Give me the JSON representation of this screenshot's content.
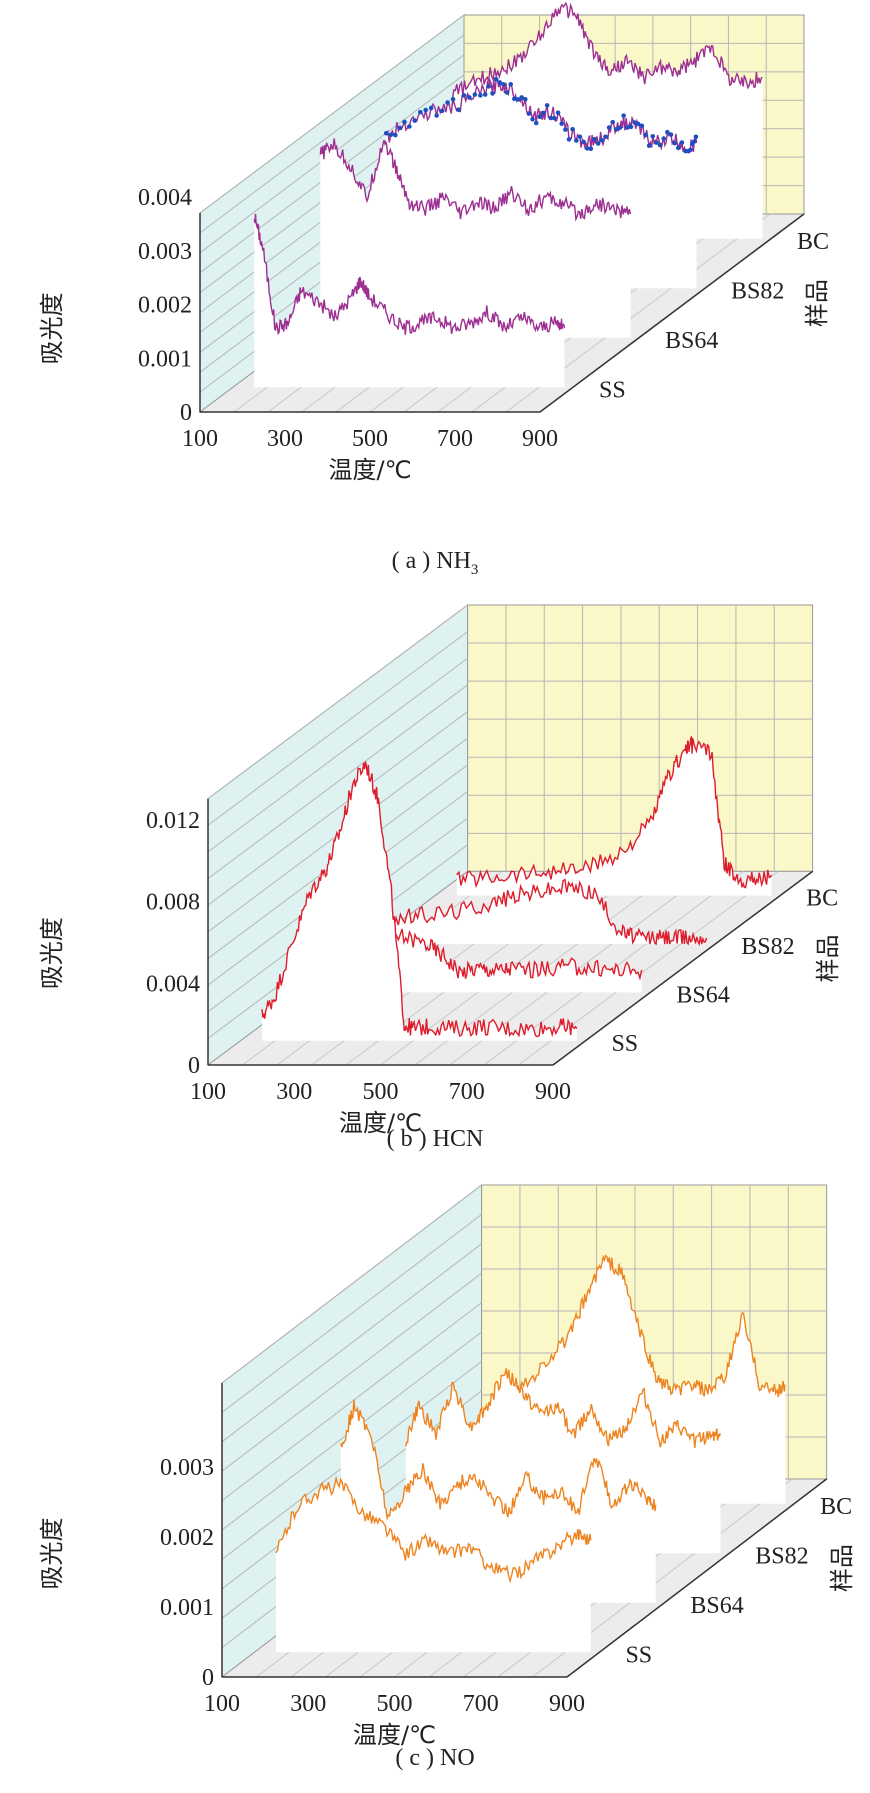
{
  "colors": {
    "left_wall": "#dff2f2",
    "back_wall": "#faf8c8",
    "floor": "#ececec",
    "grid": "#b5b5b5",
    "series_a": "#9c2f91",
    "series_a_marker": "#1f4fbf",
    "series_b": "#dd1c2c",
    "series_c": "#ee8420"
  },
  "chart_data": [
    {
      "type": "line",
      "projection": "3d-ribbons",
      "caption_prefix": "( a ) NH",
      "caption_sub": "3",
      "xlabel": "温度/℃",
      "ylabel": "吸光度",
      "zlabel": "样品",
      "xticks": [
        "100",
        "300",
        "500",
        "700",
        "900"
      ],
      "yticks": [
        "0",
        "0.001",
        "0.002",
        "0.003",
        "0.004"
      ],
      "xlim": [
        100,
        900
      ],
      "ylim": [
        0,
        0.004
      ],
      "categories": [
        "SS",
        "BS64",
        "BS82",
        "BC"
      ],
      "series": [
        {
          "name": "SS",
          "x": [
            150,
            170,
            200,
            230,
            260,
            300,
            340,
            380,
            400,
            420,
            460,
            500,
            540,
            580,
            620,
            660,
            700,
            740,
            780,
            820,
            860,
            880
          ],
          "y": [
            0.0032,
            0.0026,
            0.0011,
            0.0012,
            0.0018,
            0.0016,
            0.0013,
            0.0017,
            0.002,
            0.0017,
            0.0014,
            0.0011,
            0.0012,
            0.0013,
            0.0011,
            0.0012,
            0.0014,
            0.0011,
            0.0013,
            0.0011,
            0.0012,
            0.0011
          ]
        },
        {
          "name": "BS64",
          "x": [
            150,
            180,
            220,
            260,
            300,
            330,
            360,
            400,
            440,
            480,
            520,
            560,
            600,
            640,
            680,
            720,
            760,
            800,
            840,
            880
          ],
          "y": [
            0.0034,
            0.0036,
            0.0032,
            0.0026,
            0.0037,
            0.0031,
            0.0025,
            0.0024,
            0.0026,
            0.0023,
            0.0025,
            0.0024,
            0.0027,
            0.0024,
            0.0026,
            0.0025,
            0.0023,
            0.0025,
            0.0024,
            0.0023
          ]
        },
        {
          "name": "BS82",
          "x": [
            150,
            200,
            260,
            320,
            380,
            420,
            460,
            500,
            540,
            580,
            620,
            660,
            700,
            740,
            780,
            820,
            860,
            880
          ],
          "y": [
            0.0028,
            0.0031,
            0.0033,
            0.0034,
            0.0037,
            0.0038,
            0.0036,
            0.0032,
            0.0033,
            0.0029,
            0.0027,
            0.0028,
            0.0031,
            0.003,
            0.0027,
            0.0028,
            0.0026,
            0.0027
          ],
          "markers": true
        },
        {
          "name": "BC",
          "x": [
            150,
            200,
            250,
            300,
            350,
            400,
            440,
            480,
            520,
            560,
            600,
            640,
            680,
            720,
            760,
            800,
            840,
            880
          ],
          "y": [
            0.0027,
            0.0029,
            0.0031,
            0.0033,
            0.0037,
            0.0043,
            0.0042,
            0.0035,
            0.0031,
            0.0033,
            0.003,
            0.0032,
            0.0031,
            0.0033,
            0.0036,
            0.003,
            0.0029,
            0.003
          ]
        }
      ]
    },
    {
      "type": "line",
      "projection": "3d-ribbons",
      "caption_prefix": "( b ) HCN",
      "caption_sub": "",
      "xlabel": "温度/℃",
      "ylabel": "吸光度",
      "zlabel": "样品",
      "xticks": [
        "100",
        "300",
        "500",
        "700",
        "900"
      ],
      "yticks": [
        "0",
        "0.004",
        "0.008",
        "0.012"
      ],
      "xlim": [
        100,
        900
      ],
      "ylim": [
        0,
        0.012
      ],
      "categories": [
        "SS",
        "BS64",
        "BS82",
        "BC"
      ],
      "series": [
        {
          "name": "SS",
          "x": [
            150,
            180,
            220,
            260,
            300,
            330,
            360,
            390,
            420,
            450,
            480,
            500,
            540,
            600,
            660,
            720,
            780,
            840,
            880
          ],
          "y": [
            0.0012,
            0.0022,
            0.0048,
            0.0072,
            0.0085,
            0.0102,
            0.0125,
            0.0136,
            0.0118,
            0.0072,
            0.0008,
            0.0006,
            0.0007,
            0.0006,
            0.0007,
            0.0006,
            0.0006,
            0.0007,
            0.0006
          ]
        },
        {
          "name": "BS64",
          "x": [
            150,
            200,
            260,
            320,
            380,
            420,
            460,
            500,
            540,
            580,
            640,
            700,
            760,
            820,
            880
          ],
          "y": [
            0.0018,
            0.0024,
            0.0022,
            0.0028,
            0.0024,
            0.0018,
            0.001,
            0.0012,
            0.0011,
            0.0012,
            0.0011,
            0.0013,
            0.0012,
            0.0011,
            0.0011
          ]
        },
        {
          "name": "BS82",
          "x": [
            150,
            220,
            300,
            380,
            440,
            500,
            560,
            620,
            680,
            720,
            760,
            800,
            840,
            880
          ],
          "y": [
            0.0012,
            0.0014,
            0.0016,
            0.002,
            0.0024,
            0.0026,
            0.0028,
            0.0025,
            0.0006,
            0.0003,
            0.0003,
            0.0003,
            0.0003,
            0.0003
          ]
        },
        {
          "name": "BC",
          "x": [
            150,
            220,
            300,
            380,
            460,
            540,
            600,
            640,
            680,
            700,
            740,
            770,
            800,
            840,
            880
          ],
          "y": [
            0.0008,
            0.0009,
            0.0011,
            0.0012,
            0.0014,
            0.0022,
            0.0036,
            0.0058,
            0.0072,
            0.0074,
            0.007,
            0.0016,
            0.0008,
            0.0008,
            0.001
          ]
        }
      ]
    },
    {
      "type": "line",
      "projection": "3d-ribbons",
      "caption_prefix": "( c ) NO",
      "caption_sub": "",
      "xlabel": "温度/℃",
      "ylabel": "吸光度",
      "zlabel": "样品",
      "xticks": [
        "100",
        "300",
        "500",
        "700",
        "900"
      ],
      "yticks": [
        "0",
        "0.001",
        "0.002",
        "0.003"
      ],
      "xlim": [
        100,
        900
      ],
      "ylim": [
        0,
        0.003
      ],
      "categories": [
        "SS",
        "BS64",
        "BS82",
        "BC"
      ],
      "series": [
        {
          "name": "SS",
          "x": [
            150,
            200,
            250,
            300,
            350,
            400,
            450,
            500,
            550,
            600,
            650,
            700,
            750,
            800,
            850,
            880
          ],
          "y": [
            0.0014,
            0.0021,
            0.0023,
            0.0024,
            0.002,
            0.0018,
            0.0014,
            0.0016,
            0.0014,
            0.0015,
            0.0012,
            0.0011,
            0.0013,
            0.0015,
            0.0017,
            0.0016
          ]
        },
        {
          "name": "BS64",
          "x": [
            150,
            180,
            220,
            260,
            300,
            340,
            380,
            420,
            460,
            500,
            540,
            580,
            620,
            660,
            700,
            740,
            780,
            820,
            860,
            880
          ],
          "y": [
            0.0022,
            0.0028,
            0.0024,
            0.0012,
            0.0016,
            0.0019,
            0.0014,
            0.0017,
            0.0018,
            0.0015,
            0.0013,
            0.0018,
            0.0015,
            0.0016,
            0.0013,
            0.0021,
            0.0014,
            0.0017,
            0.0015,
            0.0014
          ]
        },
        {
          "name": "BS82",
          "x": [
            150,
            180,
            220,
            260,
            300,
            340,
            380,
            420,
            460,
            500,
            540,
            580,
            620,
            660,
            700,
            740,
            780,
            820,
            860,
            880
          ],
          "y": [
            0.0016,
            0.0021,
            0.0017,
            0.0024,
            0.0018,
            0.0021,
            0.0026,
            0.0023,
            0.002,
            0.0021,
            0.0017,
            0.0021,
            0.0016,
            0.0018,
            0.0023,
            0.0016,
            0.0018,
            0.0016,
            0.0017,
            0.0017
          ]
        },
        {
          "name": "BC",
          "x": [
            150,
            200,
            260,
            320,
            380,
            420,
            460,
            500,
            540,
            580,
            620,
            660,
            700,
            740,
            780,
            820,
            860,
            880
          ],
          "y": [
            0.0011,
            0.0013,
            0.0016,
            0.002,
            0.0024,
            0.003,
            0.0035,
            0.0033,
            0.0025,
            0.0018,
            0.0016,
            0.0017,
            0.0016,
            0.0018,
            0.0027,
            0.0017,
            0.0016,
            0.0017
          ]
        }
      ]
    }
  ]
}
